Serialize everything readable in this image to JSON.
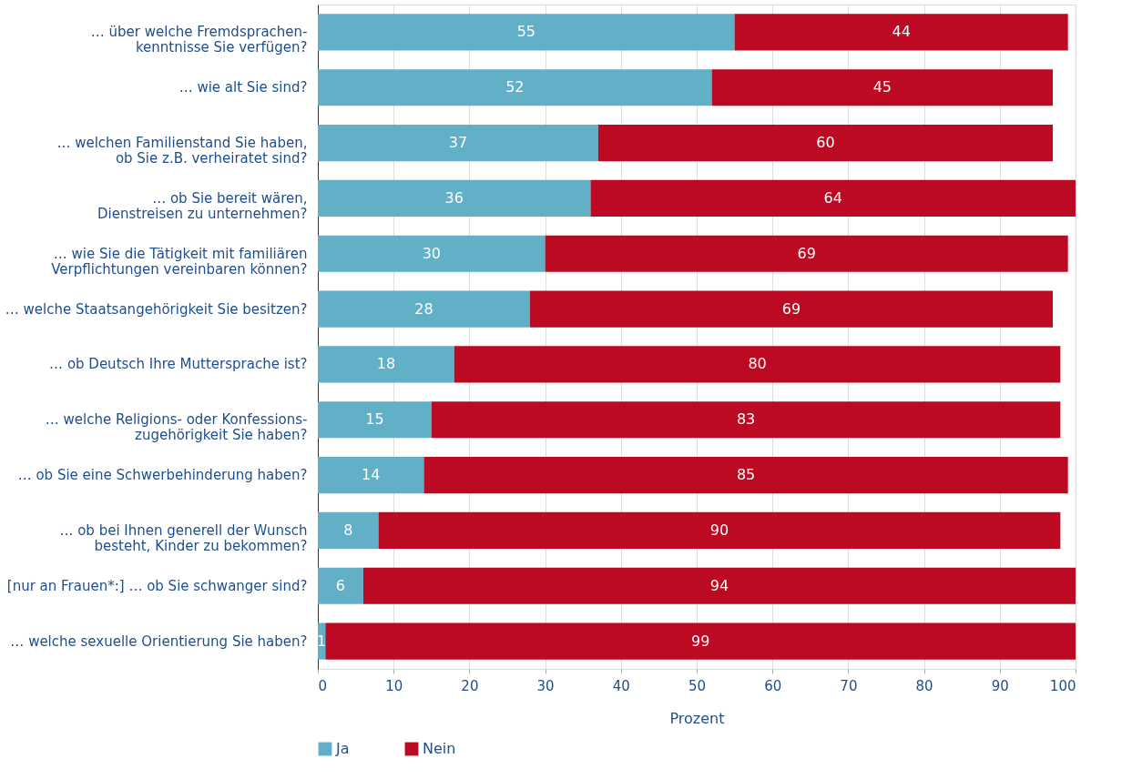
{
  "chart_data": {
    "type": "bar",
    "orientation": "horizontal",
    "stacked": true,
    "data_labels": true,
    "xlabel": "Prozent",
    "legend": "bottom",
    "grid": "x",
    "categories": [
      "… über welche Fremdsprachen-\nkenntnisse Sie verfügen?",
      "… wie alt Sie sind?",
      "… welchen Familienstand Sie haben,\nob Sie z.B. verheiratet sind?",
      "… ob Sie bereit wären,\nDienstreisen zu unternehmen?",
      "… wie Sie die Tätigkeit mit familiären\nVerpflichtungen vereinbaren können?",
      "… welche Staatsangehörigkeit Sie besitzen?",
      "… ob Deutsch Ihre Muttersprache ist?",
      "… welche Religions- oder Konfessions-\nzugehörigkeit Sie haben?",
      "… ob Sie eine Schwerbehinderung haben?",
      "… ob bei Ihnen generell der Wunsch\nbesteht, Kinder zu bekommen?",
      "[nur an Frauen*:] … ob Sie schwanger sind?",
      "… welche sexuelle Orientierung Sie haben?"
    ],
    "series": [
      {
        "name": "Ja",
        "color": "#62afc8",
        "values": [
          55,
          52,
          37,
          36,
          30,
          28,
          18,
          15,
          14,
          8,
          6,
          1
        ]
      },
      {
        "name": "Nein",
        "color": "#bb0a21",
        "values": [
          44,
          45,
          60,
          64,
          69,
          69,
          80,
          83,
          85,
          90,
          94,
          99
        ]
      }
    ],
    "xlim": [
      0,
      100
    ],
    "xticks": [
      0,
      10,
      20,
      30,
      40,
      50,
      60,
      70,
      80,
      90,
      100
    ]
  }
}
